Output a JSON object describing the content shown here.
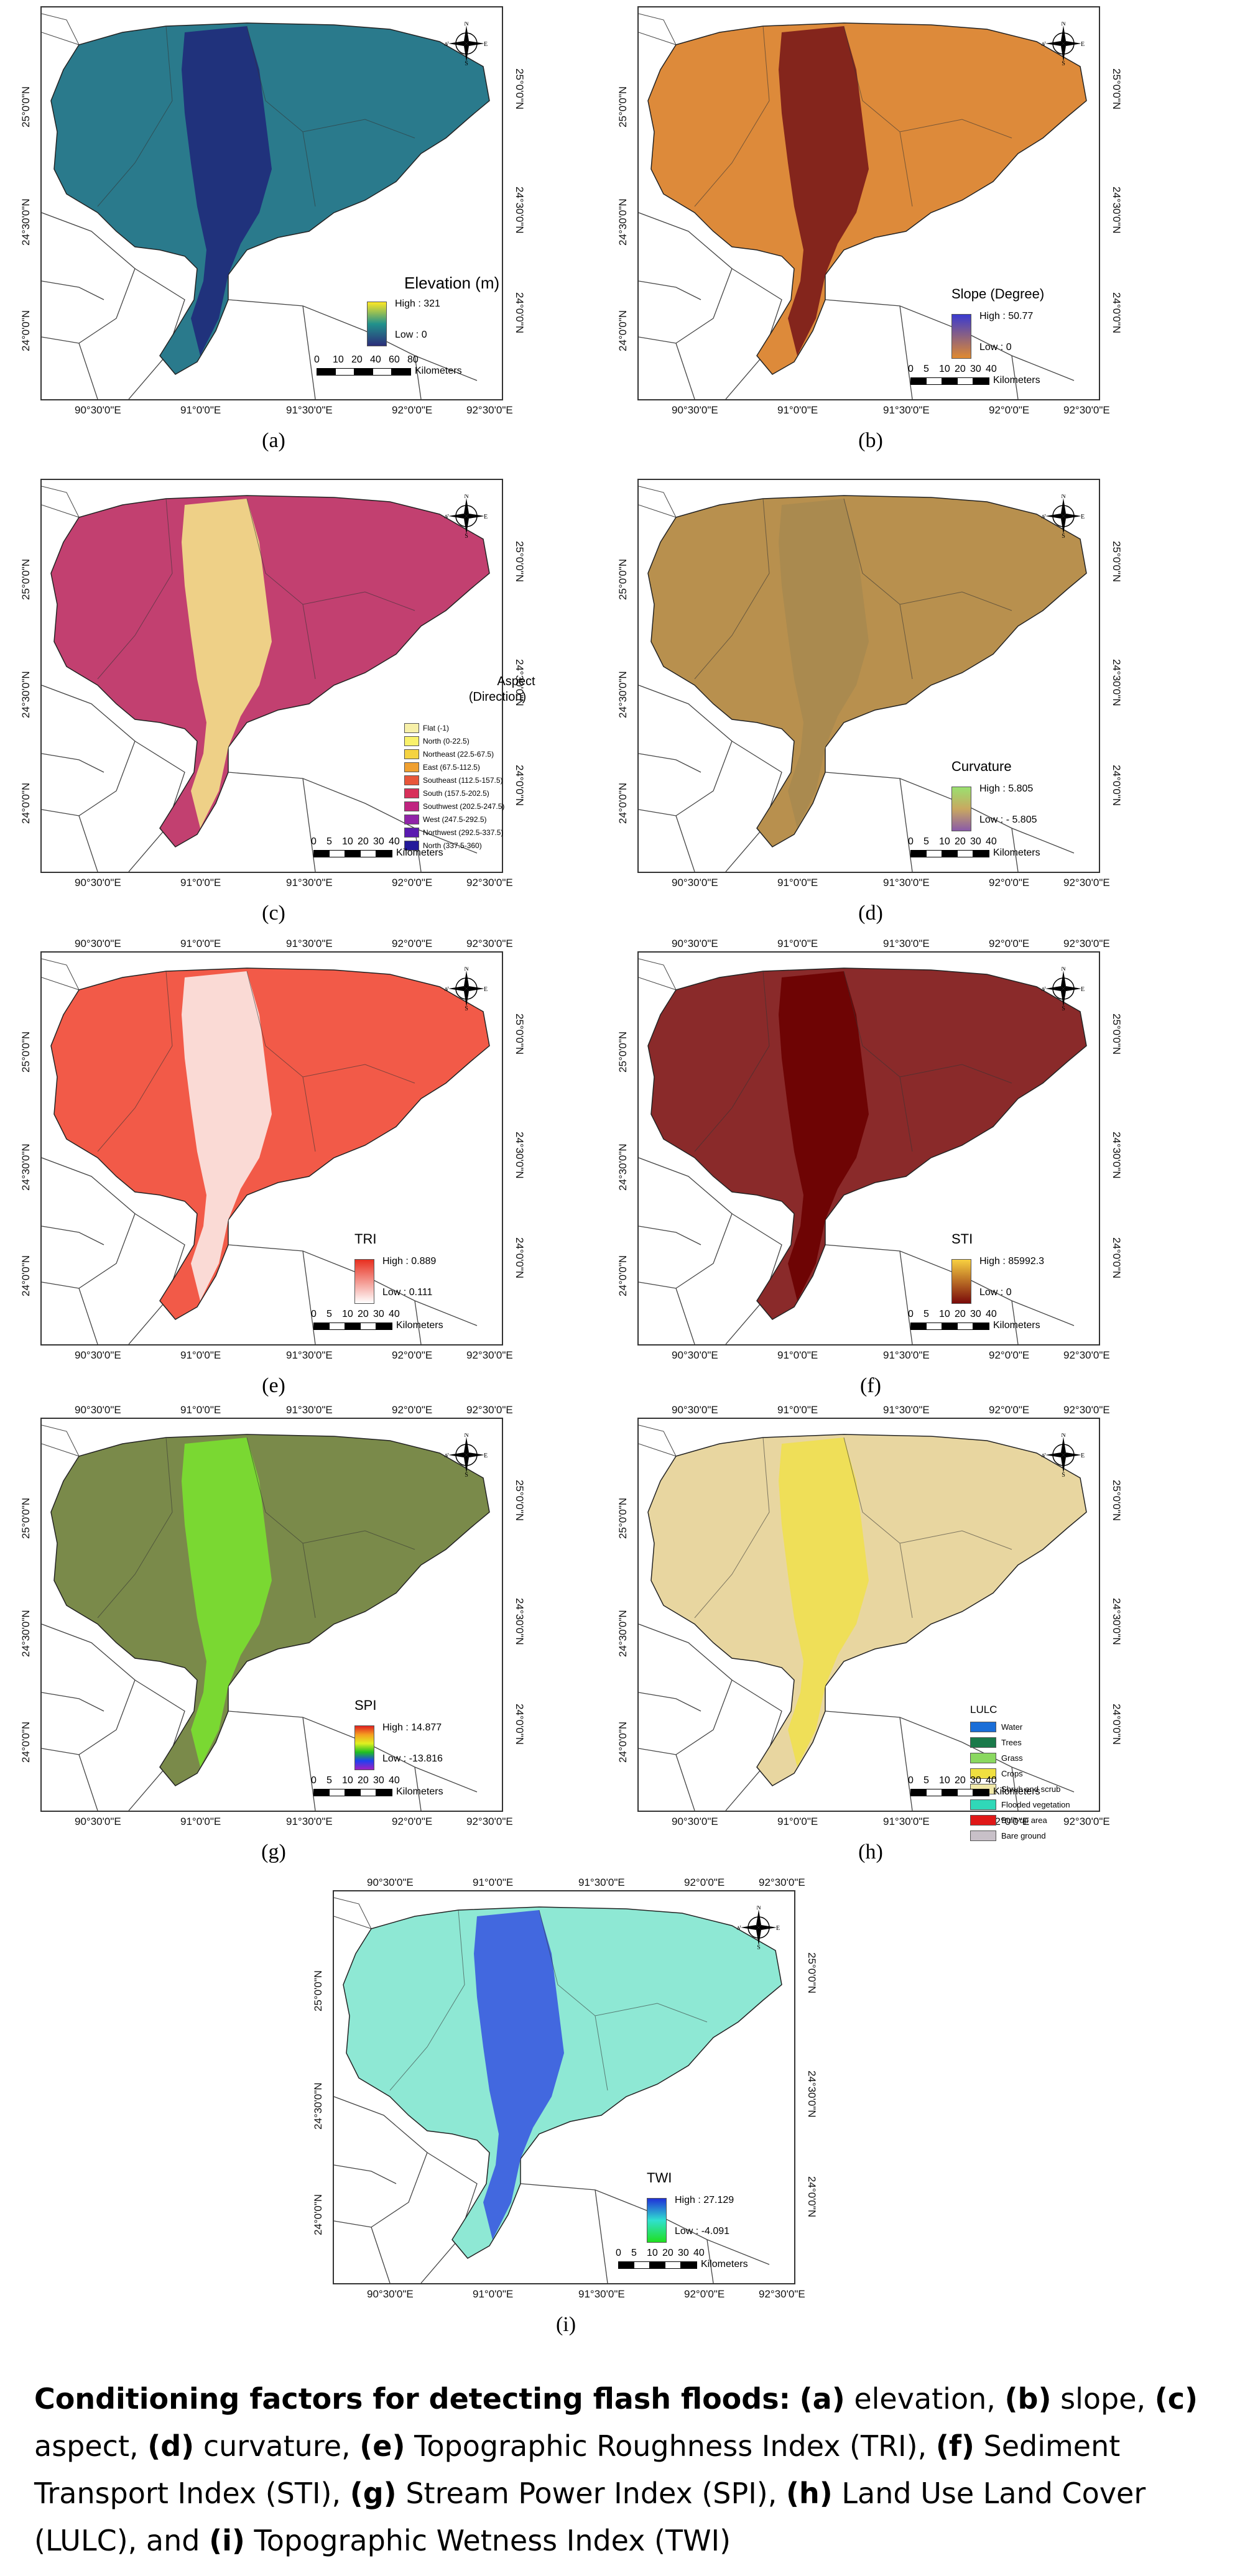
{
  "ticks": {
    "lon": [
      "90°30'0\"E",
      "91°0'0\"E",
      "91°30'0\"E",
      "92°0'0\"E",
      "92°30'0\"E"
    ],
    "lat": [
      "25°0'0\"N",
      "24°30'0\"N",
      "24°0'0\"N"
    ]
  },
  "compass": {
    "n": "N",
    "s": "S",
    "e": "E",
    "w": "W"
  },
  "scale": {
    "unit": "Kilometers",
    "labels_a": [
      "0",
      "10",
      "20",
      "40",
      "60",
      "80"
    ],
    "labels_std": [
      "0",
      "5",
      "10",
      "20",
      "30",
      "40"
    ]
  },
  "panels": [
    {
      "id": "a",
      "letter": "(a)",
      "legend_title": "Elevation (m)",
      "high": "High : 321",
      "low": "Low : 0",
      "colors": [
        "#fde725",
        "#35b779",
        "#31688e",
        "#2c2e7a"
      ],
      "ramp": [
        "#fde725",
        "#21918c",
        "#2c2e7a"
      ],
      "base": "#2a7a8c",
      "band": "#1f2a7a"
    },
    {
      "id": "b",
      "letter": "(b)",
      "legend_title": "Slope (Degree)",
      "high": "High : 50.77",
      "low": "Low : 0",
      "ramp": [
        "#3a3ad0",
        "#e08a30"
      ],
      "base": "#dd8a3a",
      "band": "#7a1a1a"
    },
    {
      "id": "c",
      "letter": "(c)",
      "legend_title": "Aspect",
      "legend_sub": "(Direction)",
      "base": "#c24070",
      "band": "#f3e08a",
      "classes": [
        {
          "label": "Flat (-1)",
          "color": "#f7f0a8"
        },
        {
          "label": "North (0-22.5)",
          "color": "#f9f16a"
        },
        {
          "label": "Northeast (22.5-67.5)",
          "color": "#f5d342"
        },
        {
          "label": "East (67.5-112.5)",
          "color": "#f0a030"
        },
        {
          "label": "Southeast (112.5-157.5)",
          "color": "#e8563a"
        },
        {
          "label": "South (157.5-202.5)",
          "color": "#d8305a"
        },
        {
          "label": "Southwest (202.5-247.5)",
          "color": "#c02480"
        },
        {
          "label": "West (247.5-292.5)",
          "color": "#9024a8"
        },
        {
          "label": "Northwest (292.5-337.5)",
          "color": "#5a1ab0"
        },
        {
          "label": "North (337.5-360)",
          "color": "#241a9a"
        }
      ]
    },
    {
      "id": "d",
      "letter": "(d)",
      "legend_title": "Curvature",
      "high": "High : 5.805",
      "low": "Low : - 5.805",
      "ramp": [
        "#9ae070",
        "#c9a860",
        "#8a5aa8"
      ],
      "base": "#b8904e",
      "band": "#a88a50"
    },
    {
      "id": "e",
      "letter": "(e)",
      "legend_title": "TRI",
      "high": "High : 0.889",
      "low": "Low : 0.111",
      "ramp": [
        "#e83020",
        "#ffffff"
      ],
      "base": "#f25a48",
      "band": "#fbe8e4"
    },
    {
      "id": "f",
      "letter": "(f)",
      "legend_title": "STI",
      "high": "High : 85992.3",
      "low": "Low : 0",
      "ramp": [
        "#f8d040",
        "#7a0a0a"
      ],
      "base": "#8a2a2a",
      "band": "#6a0000"
    },
    {
      "id": "g",
      "letter": "(g)",
      "legend_title": "SPI",
      "high": "High : 14.877",
      "low": "Low : -13.816",
      "ramp": [
        "#e02020",
        "#f5a020",
        "#e0f020",
        "#20c020",
        "#2040f0",
        "#a020c0"
      ],
      "base": "#7a8a4a",
      "band": "#7ae030"
    },
    {
      "id": "h",
      "letter": "(h)",
      "legend_title": "LULC",
      "base": "#e8d6a0",
      "band": "#f0e050",
      "classes": [
        {
          "label": "Water",
          "color": "#1a6ed8"
        },
        {
          "label": "Trees",
          "color": "#1a7a4a"
        },
        {
          "label": "Grass",
          "color": "#8ad860"
        },
        {
          "label": "Crops",
          "color": "#f0e040"
        },
        {
          "label": "Shrub and scrub",
          "color": "#f0e8a8"
        },
        {
          "label": "Flooded vegetation",
          "color": "#30d8b8"
        },
        {
          "label": "Built-up area",
          "color": "#e01818"
        },
        {
          "label": "Bare ground",
          "color": "#c8c0c8"
        }
      ]
    },
    {
      "id": "i",
      "letter": "(i)",
      "legend_title": "TWI",
      "high": "High : 27.129",
      "low": "Low : -4.091",
      "ramp": [
        "#2030d8",
        "#30e0d0",
        "#20e020"
      ],
      "base": "#8ee8d4",
      "band": "#3a5ae0"
    }
  ],
  "caption": {
    "bold_lead": "Conditioning factors for detecting flash floods:",
    "items": [
      {
        "tag": "(a)",
        "text": " elevation, "
      },
      {
        "tag": "(b)",
        "text": " slope, "
      },
      {
        "tag": "(c)",
        "text": " aspect, "
      },
      {
        "tag": "(d)",
        "text": " curvature, "
      },
      {
        "tag": "(e)",
        "text": " Topographic Roughness Index (TRI), "
      },
      {
        "tag": "(f)",
        "text": " Sediment Transport Index (STI), "
      },
      {
        "tag": "(g)",
        "text": " Stream Power Index (SPI), "
      },
      {
        "tag": "(h)",
        "text": " Land Use Land Cover (LULC), and "
      },
      {
        "tag": "(i)",
        "text": " Topographic Wetness Index (TWI)"
      }
    ]
  }
}
